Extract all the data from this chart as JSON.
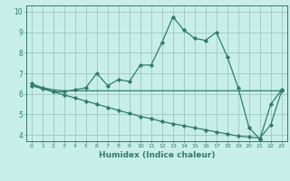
{
  "x": [
    0,
    1,
    2,
    3,
    4,
    5,
    6,
    7,
    8,
    9,
    10,
    11,
    12,
    13,
    14,
    15,
    16,
    17,
    18,
    19,
    20,
    21,
    22,
    23
  ],
  "line1": [
    6.5,
    6.3,
    6.1,
    6.1,
    6.2,
    6.3,
    7.0,
    6.4,
    6.7,
    6.6,
    7.4,
    7.4,
    8.5,
    9.75,
    9.1,
    8.7,
    8.6,
    9.0,
    7.8,
    6.3,
    4.35,
    3.8,
    5.5,
    6.2
  ],
  "line2": [
    6.4,
    6.3,
    6.2,
    6.15,
    6.15,
    6.15,
    6.15,
    6.15,
    6.15,
    6.15,
    6.15,
    6.15,
    6.15,
    6.15,
    6.15,
    6.15,
    6.15,
    6.15,
    6.15,
    6.15,
    6.15,
    6.15,
    6.15,
    6.15
  ],
  "line3": [
    6.4,
    6.25,
    6.1,
    5.95,
    5.8,
    5.65,
    5.5,
    5.35,
    5.2,
    5.05,
    4.9,
    4.8,
    4.65,
    4.55,
    4.45,
    4.35,
    4.25,
    4.15,
    4.05,
    3.95,
    3.9,
    3.85,
    4.5,
    6.15
  ],
  "color": "#2e7d6e",
  "bg_color": "#c8eeea",
  "grid_color": "#9bbfbb",
  "xlabel": "Humidex (Indice chaleur)",
  "xlim": [
    -0.5,
    23.5
  ],
  "ylim": [
    3.7,
    10.3
  ],
  "yticks": [
    4,
    5,
    6,
    7,
    8,
    9,
    10
  ],
  "xticks": [
    0,
    1,
    2,
    3,
    4,
    5,
    6,
    7,
    8,
    9,
    10,
    11,
    12,
    13,
    14,
    15,
    16,
    17,
    18,
    19,
    20,
    21,
    22,
    23
  ],
  "marker": "D",
  "markersize": 2.2,
  "linewidth": 0.9
}
